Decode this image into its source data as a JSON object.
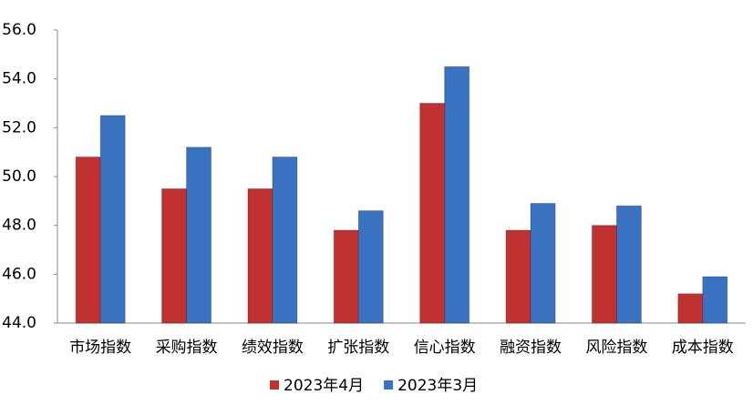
{
  "chart_data": {
    "type": "bar",
    "categories": [
      "市场指数",
      "采购指数",
      "绩效指数",
      "扩张指数",
      "信心指数",
      "融资指数",
      "风险指数",
      "成本指数"
    ],
    "series": [
      {
        "name": "2023年4月",
        "color": "#c0312f",
        "values": [
          50.8,
          49.5,
          49.5,
          47.8,
          53.0,
          47.8,
          48.0,
          45.2
        ]
      },
      {
        "name": "2023年3月",
        "color": "#3a72c2",
        "values": [
          52.5,
          51.2,
          50.8,
          48.6,
          54.5,
          48.9,
          48.8,
          45.9
        ]
      }
    ],
    "ylim": [
      44,
      56
    ],
    "yticks": [
      {
        "value": 44,
        "label": "44.0"
      },
      {
        "value": 46,
        "label": "46.0"
      },
      {
        "value": 48,
        "label": "48.0"
      },
      {
        "value": 50,
        "label": "50.0"
      },
      {
        "value": 52,
        "label": "52.0"
      },
      {
        "value": 54,
        "label": "54.0"
      },
      {
        "value": 56,
        "label": "56.0"
      }
    ],
    "grid": false,
    "legend": "bottom"
  }
}
